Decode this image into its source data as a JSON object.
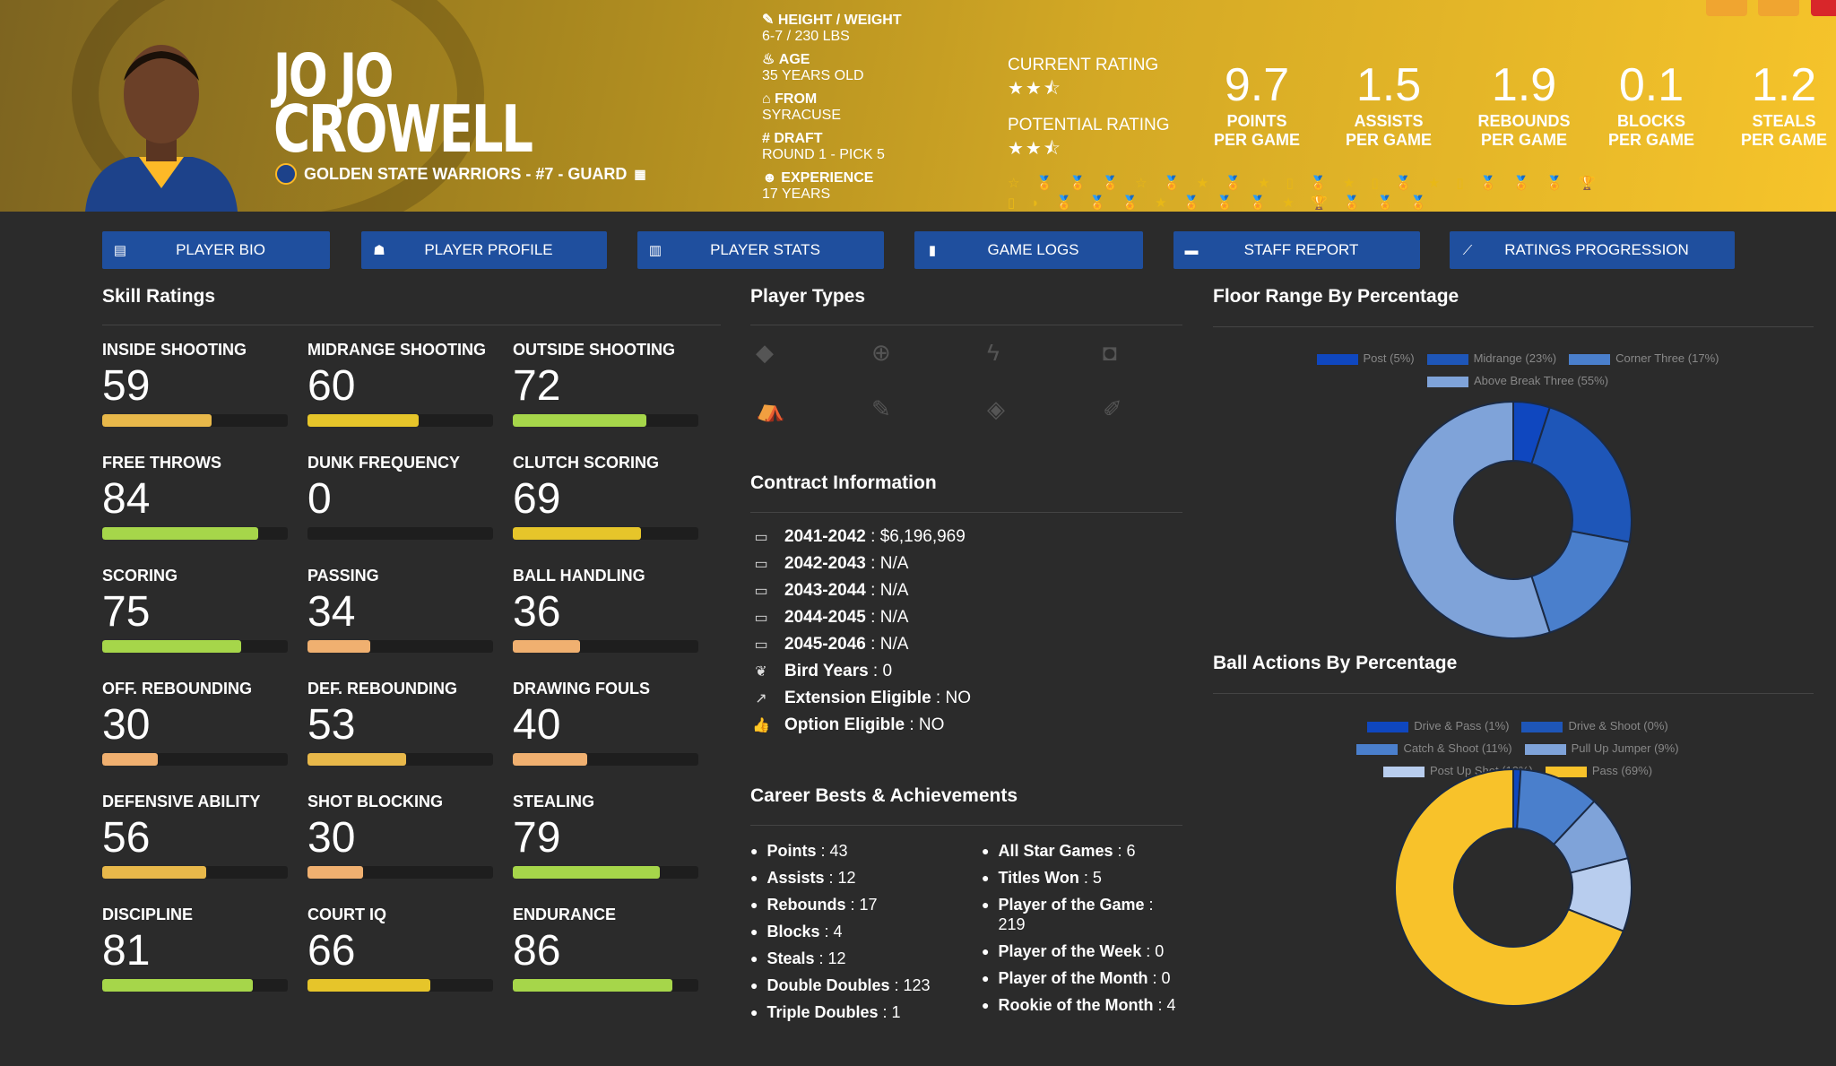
{
  "player": {
    "first": "JO JO",
    "last": "CROWELL",
    "team_line": "GOLDEN STATE WARRIORS - #7 - GUARD"
  },
  "bio": [
    {
      "icon": "ruler-icon",
      "glyph": "✎",
      "label": "HEIGHT / WEIGHT",
      "value": "6-7 / 230 LBS"
    },
    {
      "icon": "birthday-cake-icon",
      "glyph": "♨",
      "label": "AGE",
      "value": "35 YEARS OLD"
    },
    {
      "icon": "school-icon",
      "glyph": "⌂",
      "label": "FROM",
      "value": "SYRACUSE"
    },
    {
      "icon": "hashtag-icon",
      "glyph": "#",
      "label": "DRAFT",
      "value": "ROUND 1 - PICK 5"
    },
    {
      "icon": "user-clock-icon",
      "glyph": "☻",
      "label": "EXPERIENCE",
      "value": "17 YEARS"
    }
  ],
  "ratings": {
    "current_label": "CURRENT RATING",
    "current_stars": 2.5,
    "potential_label": "POTENTIAL RATING",
    "potential_stars": 2.5
  },
  "stats": [
    {
      "value": "9.7",
      "l1": "POINTS",
      "l2": "PER GAME"
    },
    {
      "value": "1.5",
      "l1": "ASSISTS",
      "l2": "PER GAME"
    },
    {
      "value": "1.9",
      "l1": "REBOUNDS",
      "l2": "PER GAME"
    },
    {
      "value": "0.1",
      "l1": "BLOCKS",
      "l2": "PER GAME"
    },
    {
      "value": "1.2",
      "l1": "STEALS",
      "l2": "PER GAME"
    }
  ],
  "achievements_glyphs": "☆ 🏅 🏅 🏅 ☆ 🏅 ★ 🏅 ★ ▯ 🏅 ★ ▯ 🏅 ★ ▯ 🏅 🏅 🏅 🏆 ▯ ◗ 🏅 🏅 🏅 ★ 🏅 🏅 🏅 ★ 🏆 🏅 🏅 🏅",
  "nav": [
    {
      "icon": "id-card-icon",
      "glyph": "▤",
      "label": "PLAYER BIO"
    },
    {
      "icon": "user-profile-icon",
      "glyph": "☗",
      "label": "PLAYER PROFILE"
    },
    {
      "icon": "bar-chart-icon",
      "glyph": "▥",
      "label": "PLAYER STATS"
    },
    {
      "icon": "clipboard-icon",
      "glyph": "▮",
      "label": "GAME LOGS"
    },
    {
      "icon": "comment-icon",
      "glyph": "▬",
      "label": "STAFF REPORT"
    },
    {
      "icon": "line-chart-icon",
      "glyph": "⟋",
      "label": "RATINGS PROGRESSION"
    }
  ],
  "skills_title": "Skill Ratings",
  "skills": [
    {
      "name": "INSIDE SHOOTING",
      "value": 59
    },
    {
      "name": "MIDRANGE SHOOTING",
      "value": 60
    },
    {
      "name": "OUTSIDE SHOOTING",
      "value": 72
    },
    {
      "name": "FREE THROWS",
      "value": 84
    },
    {
      "name": "DUNK FREQUENCY",
      "value": 0
    },
    {
      "name": "CLUTCH SCORING",
      "value": 69
    },
    {
      "name": "SCORING",
      "value": 75
    },
    {
      "name": "PASSING",
      "value": 34
    },
    {
      "name": "BALL HANDLING",
      "value": 36
    },
    {
      "name": "OFF. REBOUNDING",
      "value": 30
    },
    {
      "name": "DEF. REBOUNDING",
      "value": 53
    },
    {
      "name": "DRAWING FOULS",
      "value": 40
    },
    {
      "name": "DEFENSIVE ABILITY",
      "value": 56
    },
    {
      "name": "SHOT BLOCKING",
      "value": 30
    },
    {
      "name": "STEALING",
      "value": 79
    },
    {
      "name": "DISCIPLINE",
      "value": 81
    },
    {
      "name": "COURT IQ",
      "value": 66
    },
    {
      "name": "ENDURANCE",
      "value": 86
    }
  ],
  "player_types_title": "Player Types",
  "player_types": [
    {
      "icon": "paint-bucket-icon",
      "glyph": "◆"
    },
    {
      "icon": "crosshair-icon",
      "glyph": "⊕"
    },
    {
      "icon": "bolt-icon",
      "glyph": "ϟ"
    },
    {
      "icon": "paint-roller-icon",
      "glyph": "◘"
    },
    {
      "icon": "broom-icon",
      "glyph": "⛺"
    },
    {
      "icon": "magic-wand-icon",
      "glyph": "✎"
    },
    {
      "icon": "shield-icon",
      "glyph": "◈"
    },
    {
      "icon": "brush-icon",
      "glyph": "✐"
    }
  ],
  "contract_title": "Contract Information",
  "contract": [
    {
      "icon": "money-bill-icon",
      "glyph": "▭",
      "label": "2041-2042",
      "value": "$6,196,969"
    },
    {
      "icon": "money-bill-icon",
      "glyph": "▭",
      "label": "2042-2043",
      "value": "N/A"
    },
    {
      "icon": "money-bill-icon",
      "glyph": "▭",
      "label": "2043-2044",
      "value": "N/A"
    },
    {
      "icon": "money-bill-icon",
      "glyph": "▭",
      "label": "2044-2045",
      "value": "N/A"
    },
    {
      "icon": "money-bill-icon",
      "glyph": "▭",
      "label": "2045-2046",
      "value": "N/A"
    },
    {
      "icon": "feather-icon",
      "glyph": "❦",
      "label": "Bird Years",
      "value": "0"
    },
    {
      "icon": "external-link-icon",
      "glyph": "↗",
      "label": "Extension Eligible",
      "value": "NO"
    },
    {
      "icon": "thumbs-up-icon",
      "glyph": "👍",
      "label": "Option Eligible",
      "value": "NO"
    }
  ],
  "bests_title": "Career Bests & Achievements",
  "bests_left": [
    {
      "label": "Points",
      "value": "43"
    },
    {
      "label": "Assists",
      "value": "12"
    },
    {
      "label": "Rebounds",
      "value": "17"
    },
    {
      "label": "Blocks",
      "value": "4"
    },
    {
      "label": "Steals",
      "value": "12"
    },
    {
      "label": "Double Doubles",
      "value": "123"
    },
    {
      "label": "Triple Doubles",
      "value": "1"
    }
  ],
  "bests_right": [
    {
      "label": "All Star Games",
      "value": "6"
    },
    {
      "label": "Titles Won",
      "value": "5"
    },
    {
      "label": "Player of the Game",
      "value": "219"
    },
    {
      "label": "Player of the Week",
      "value": "0"
    },
    {
      "label": "Player of the Month",
      "value": "0"
    },
    {
      "label": "Rookie of the Month",
      "value": "4"
    }
  ],
  "chart_data": [
    {
      "type": "pie",
      "title": "Floor Range By Percentage",
      "legend_position": "top",
      "donut": true,
      "categories": [
        "Post (5%)",
        "Midrange (23%)",
        "Corner Three (17%)",
        "Above Break Three (55%)"
      ],
      "values": [
        5,
        23,
        17,
        55
      ],
      "colors": [
        "#0f47bf",
        "#1e56b8",
        "#4a7fcc",
        "#7fa3d9"
      ]
    },
    {
      "type": "pie",
      "title": "Ball Actions By Percentage",
      "legend_position": "top",
      "donut": true,
      "categories": [
        "Drive & Pass (1%)",
        "Drive & Shoot (0%)",
        "Catch & Shoot (11%)",
        "Pull Up Jumper (9%)",
        "Post Up Shot (10%)",
        "Pass (69%)"
      ],
      "values": [
        1,
        0,
        11,
        9,
        10,
        69
      ],
      "colors": [
        "#0f47bf",
        "#1e56b8",
        "#4a7fcc",
        "#7fa3d9",
        "#b8cdee",
        "#f8c22a"
      ]
    }
  ]
}
